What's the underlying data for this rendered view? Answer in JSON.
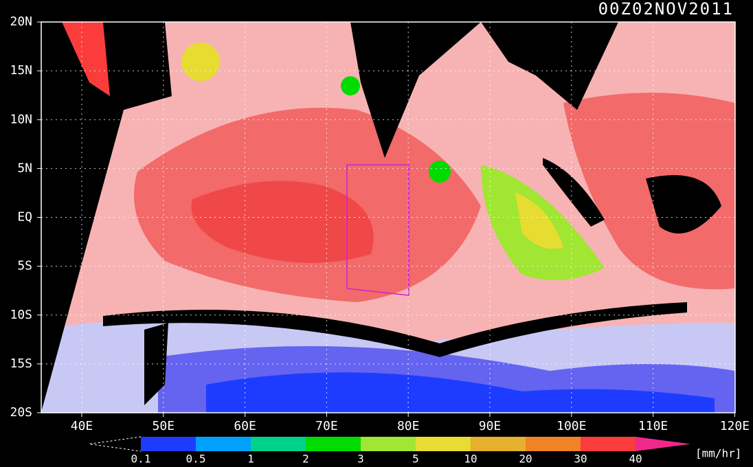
{
  "title": "00Z02NOV2011",
  "lat_labels": [
    "20N",
    "15N",
    "10N",
    "5N",
    "EQ",
    "5S",
    "10S",
    "15S",
    "20S"
  ],
  "lon_labels": [
    "40E",
    "50E",
    "60E",
    "70E",
    "80E",
    "90E",
    "100E",
    "110E",
    "120E"
  ],
  "legend": {
    "labels": [
      "0.1",
      "0.5",
      "1",
      "2",
      "3",
      "5",
      "10",
      "20",
      "30",
      "40"
    ],
    "colors": [
      "#1e3cff",
      "#00a0ff",
      "#00d28c",
      "#00dc00",
      "#a0e632",
      "#e6dc32",
      "#e6af2d",
      "#f08228",
      "#fa3c3c"
    ],
    "over_color": "#f0288c",
    "unit": "[mm/hr]"
  }
}
